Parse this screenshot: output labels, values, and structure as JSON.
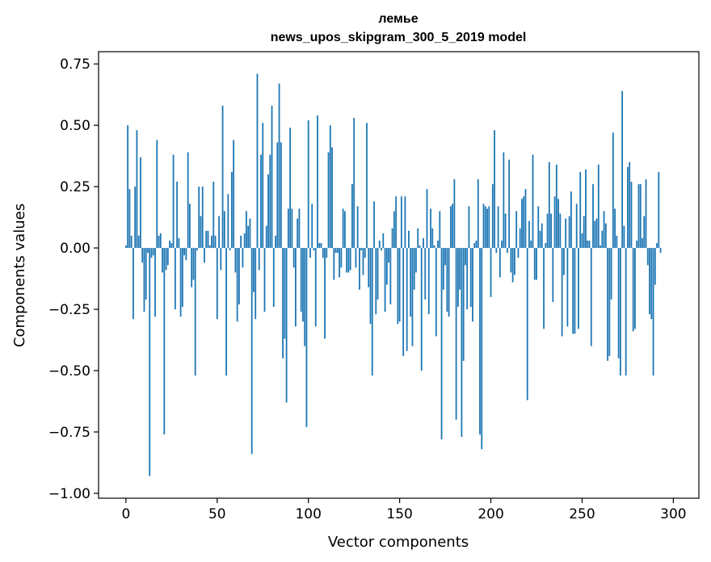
{
  "chart_data": {
    "type": "bar",
    "title": "лемье",
    "subtitle": "news_upos_skipgram_300_5_2019 model",
    "xlabel": "Vector components",
    "ylabel": "Components values",
    "xlim": [
      -15,
      314
    ],
    "ylim": [
      -1.02,
      0.8
    ],
    "xticks": [
      0,
      50,
      100,
      150,
      200,
      250,
      300
    ],
    "xtick_labels": [
      "0",
      "50",
      "100",
      "150",
      "200",
      "250",
      "300"
    ],
    "yticks": [
      0.75,
      0.5,
      0.25,
      0.0,
      -0.25,
      -0.5,
      -0.75,
      -1.0
    ],
    "ytick_labels": [
      "0.75",
      "0.50",
      "0.25",
      "0.00",
      "−0.25",
      "−0.50",
      "−0.75",
      "−1.00"
    ],
    "bar_color": "#1f77b4",
    "values": [
      0.01,
      0.5,
      0.24,
      0.05,
      -0.29,
      0.25,
      0.48,
      0.05,
      0.37,
      -0.06,
      -0.26,
      -0.21,
      -0.02,
      -0.93,
      -0.04,
      -0.03,
      -0.28,
      0.44,
      0.05,
      0.06,
      -0.1,
      -0.76,
      -0.09,
      -0.07,
      0.03,
      0.02,
      0.38,
      -0.25,
      0.27,
      0.04,
      -0.28,
      -0.24,
      -0.03,
      -0.05,
      0.39,
      0.18,
      -0.16,
      -0.13,
      -0.52,
      -0.01,
      0.25,
      0.13,
      0.25,
      -0.06,
      0.07,
      0.07,
      0.01,
      0.05,
      0.27,
      0.05,
      -0.29,
      0.13,
      -0.09,
      0.58,
      0.15,
      -0.52,
      0.22,
      -0.01,
      0.31,
      0.44,
      -0.1,
      -0.3,
      -0.23,
      0.05,
      -0.08,
      0.06,
      0.15,
      0.09,
      0.12,
      -0.84,
      -0.18,
      -0.29,
      0.71,
      -0.09,
      0.38,
      0.51,
      -0.26,
      0.09,
      0.3,
      0.38,
      0.58,
      -0.24,
      0.05,
      0.43,
      0.67,
      0.43,
      -0.45,
      -0.37,
      -0.63,
      0.16,
      0.49,
      0.16,
      -0.08,
      -0.32,
      0.12,
      0.16,
      -0.26,
      -0.3,
      -0.4,
      -0.73,
      0.52,
      -0.04,
      0.18,
      -0.01,
      -0.32,
      0.54,
      0.02,
      0.02,
      -0.04,
      -0.37,
      -0.04,
      0.39,
      0.5,
      0.41,
      -0.13,
      -0.02,
      -0.02,
      -0.12,
      -0.08,
      0.16,
      0.15,
      -0.1,
      -0.1,
      -0.09,
      0.26,
      0.53,
      -0.08,
      0.17,
      -0.17,
      -0.01,
      -0.11,
      -0.04,
      0.51,
      -0.16,
      -0.31,
      -0.52,
      0.19,
      -0.27,
      -0.21,
      0.03,
      -0.01,
      0.06,
      -0.26,
      -0.15,
      -0.06,
      -0.23,
      0.08,
      0.15,
      0.21,
      -0.31,
      -0.3,
      0.21,
      -0.44,
      0.21,
      -0.42,
      0.07,
      -0.28,
      -0.4,
      -0.17,
      -0.1,
      0.08,
      0.01,
      -0.5,
      0.04,
      -0.21,
      0.24,
      -0.27,
      0.16,
      0.08,
      0.01,
      -0.36,
      0.03,
      0.15,
      -0.78,
      -0.17,
      -0.07,
      -0.26,
      -0.28,
      0.17,
      0.18,
      0.28,
      -0.7,
      -0.24,
      -0.17,
      -0.77,
      -0.46,
      -0.07,
      -0.25,
      0.17,
      -0.24,
      -0.3,
      0.02,
      0.03,
      0.28,
      -0.76,
      -0.82,
      0.18,
      0.17,
      0.16,
      0.17,
      -0.2,
      0.26,
      0.48,
      -0.02,
      0.17,
      -0.12,
      0.03,
      0.39,
      0.14,
      -0.02,
      0.36,
      -0.1,
      -0.14,
      -0.11,
      0.15,
      -0.04,
      0.08,
      0.2,
      0.21,
      0.24,
      -0.62,
      0.11,
      0.03,
      0.38,
      -0.13,
      -0.13,
      0.17,
      0.07,
      0.1,
      -0.33,
      0.02,
      0.14,
      0.35,
      0.14,
      -0.22,
      0.21,
      0.34,
      0.2,
      0.14,
      -0.36,
      -0.11,
      0.12,
      -0.32,
      0.13,
      0.23,
      -0.35,
      -0.35,
      0.18,
      -0.33,
      0.31,
      0.06,
      0.13,
      0.32,
      0.03,
      0.03,
      -0.4,
      0.26,
      0.11,
      0.12,
      0.34,
      0.01,
      0.07,
      0.15,
      0.1,
      -0.46,
      -0.44,
      -0.21,
      0.47,
      0.16,
      0.05,
      -0.45,
      -0.52,
      0.64,
      0.09,
      -0.52,
      0.33,
      0.35,
      0.27,
      -0.34,
      -0.33,
      0.03,
      0.26,
      0.26,
      0.04,
      0.13,
      0.28,
      -0.07,
      -0.27,
      -0.29,
      -0.52,
      -0.15,
      0.02,
      0.31,
      -0.02
    ]
  }
}
